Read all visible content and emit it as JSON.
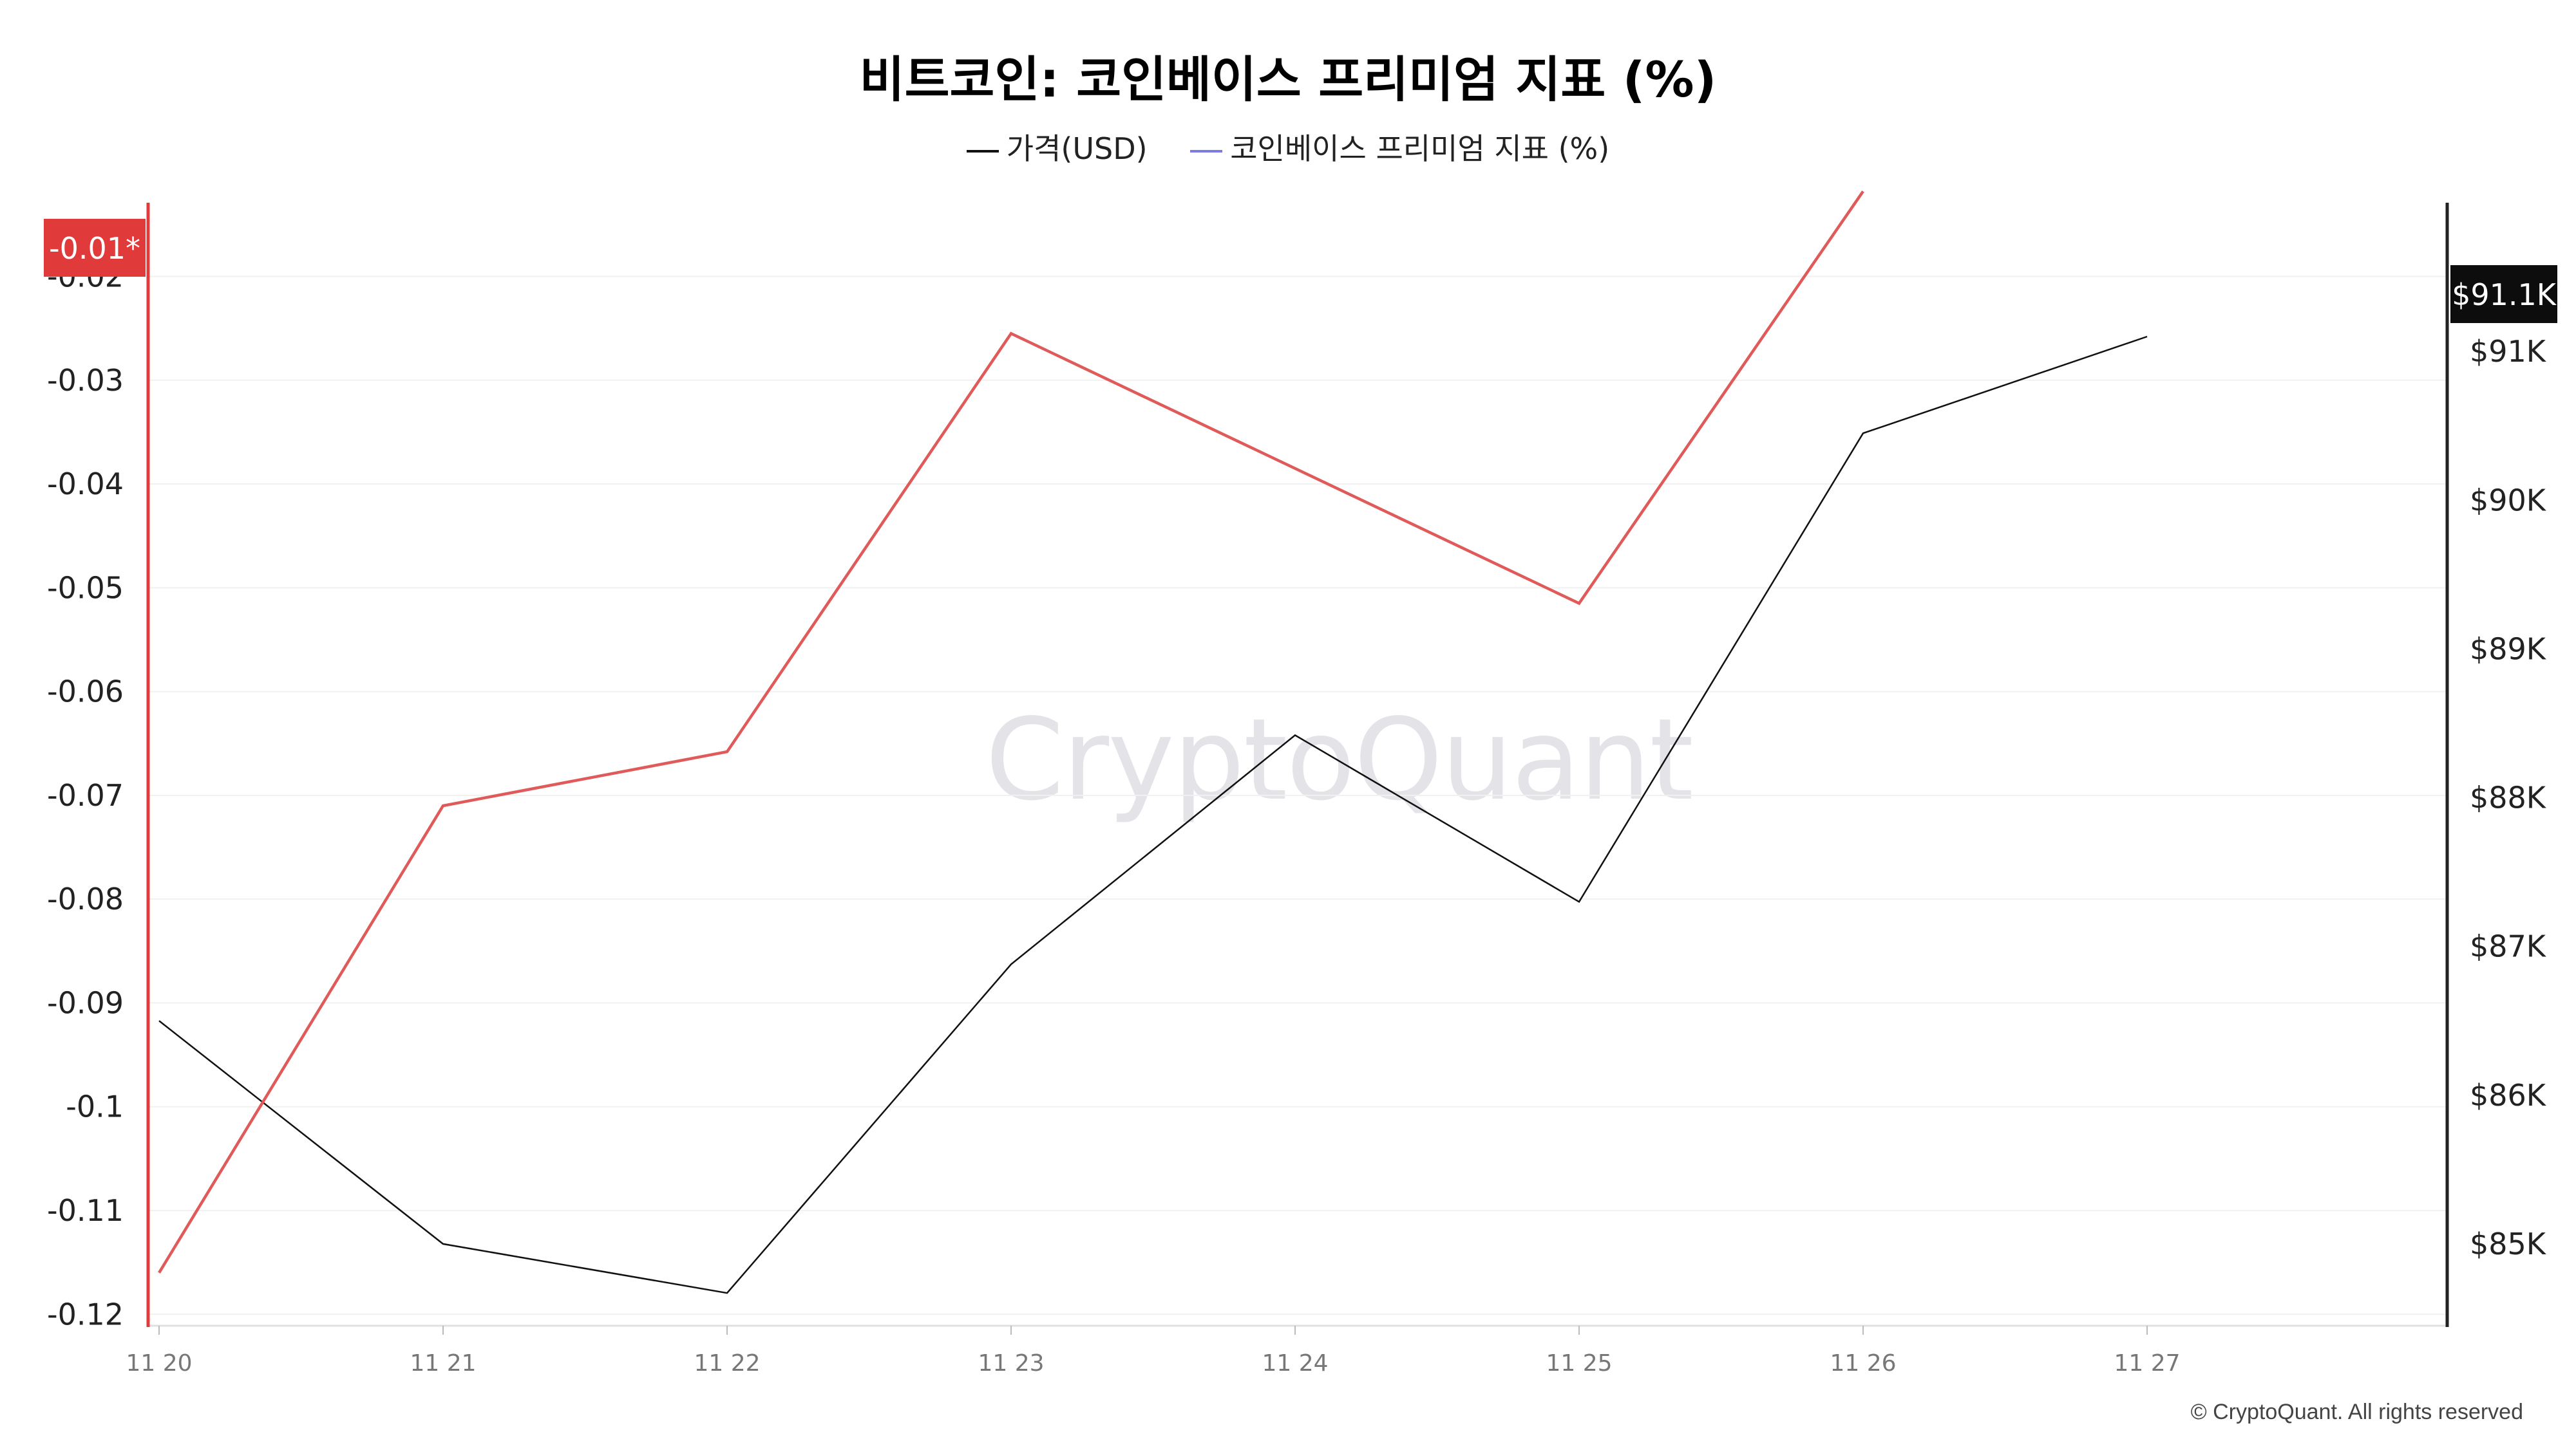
{
  "chart_data": {
    "type": "line",
    "title": "비트코인: 코인베이스 프리미엄 지표 (%)",
    "categories": [
      "11 20",
      "11 21",
      "11 22",
      "11 23",
      "11 24",
      "11 25",
      "11 26",
      "11 27"
    ],
    "series": [
      {
        "name": "가격(USD)",
        "axis": "right",
        "color": "#111111",
        "values": [
          86500,
          85000,
          84670,
          86880,
          88420,
          87300,
          90450,
          91100
        ]
      },
      {
        "name": "코인베이스 프리미엄 지표 (%)",
        "axis": "left",
        "color": "#e05a5a",
        "legend_color": "#7b7be6",
        "values": [
          -0.116,
          -0.071,
          -0.0658,
          -0.0255,
          -0.0385,
          -0.0515,
          -0.0118,
          null
        ]
      }
    ],
    "y_left": {
      "ticks": [
        -0.12,
        -0.11,
        -0.1,
        -0.09,
        -0.08,
        -0.07,
        -0.06,
        -0.05,
        -0.04,
        -0.03,
        -0.02
      ],
      "tick_labels": [
        "-0.12",
        "-0.11",
        "-0.1",
        "-0.09",
        "-0.08",
        "-0.07",
        "-0.06",
        "-0.05",
        "-0.04",
        "-0.03",
        "-0.02"
      ],
      "ylim": [
        -0.1211,
        -0.0129
      ]
    },
    "y_right": {
      "ticks": [
        85000,
        86000,
        87000,
        88000,
        89000,
        90000,
        91000
      ],
      "tick_labels": [
        "$85K",
        "$86K",
        "$87K",
        "$88K",
        "$89K",
        "$90K",
        "$91K"
      ],
      "ylim": [
        84450,
        92000
      ]
    },
    "last_value_labels": {
      "left": "-0.01*",
      "right": "$91.1K"
    },
    "grid": true,
    "legend_position": "top-center"
  },
  "colors": {
    "left_axis": "#e03a3a",
    "grid": "#f1f1f1",
    "axis": "#222222"
  },
  "watermark": "CryptoQuant",
  "copyright": "© CryptoQuant. All rights reserved"
}
